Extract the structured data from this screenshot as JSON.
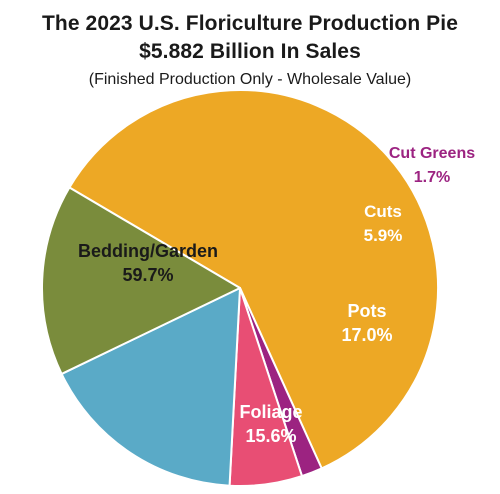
{
  "chart_data": {
    "type": "pie",
    "title": "The 2023 U.S. Floriculture Production Pie",
    "title_line2": "$5.882 Billion In Sales",
    "subtitle": "(Finished Production Only - Wholesale Value)",
    "slices": [
      {
        "label": "Bedding/Garden",
        "value": 59.7,
        "value_text": "59.7%",
        "color": "#EDA825"
      },
      {
        "label": "Cut Greens",
        "value": 1.7,
        "value_text": "1.7%",
        "color": "#9C2381"
      },
      {
        "label": "Cuts",
        "value": 5.9,
        "value_text": "5.9%",
        "color": "#E84E74"
      },
      {
        "label": "Pots",
        "value": 17.0,
        "value_text": "17.0%",
        "color": "#5AAAC7"
      },
      {
        "label": "Foliage",
        "value": 15.6,
        "value_text": "15.6%",
        "color": "#7A8C3C"
      }
    ]
  }
}
